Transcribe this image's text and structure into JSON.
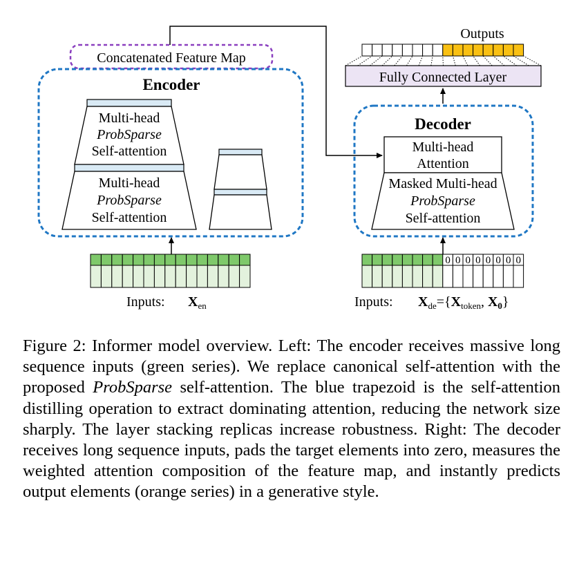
{
  "encoder": {
    "concat_label": "Concatenated Feature Map",
    "title": "Encoder",
    "attn_block_1": [
      "Multi-head",
      "ProbSparse",
      "Self-attention"
    ],
    "attn_block_2": [
      "Multi-head",
      "ProbSparse",
      "Self-attention"
    ],
    "inputs_label": "Inputs:",
    "inputs_symbol": "X",
    "inputs_subscript": "en"
  },
  "decoder": {
    "title": "Decoder",
    "cross_attn": [
      "Multi-head",
      "Attention"
    ],
    "masked_attn": [
      "Masked Multi-head",
      "ProbSparse",
      "Self-attention"
    ],
    "inputs_label": "Inputs:",
    "inputs_symbol_main": "X",
    "inputs_sub_de": "de",
    "inputs_eq": "={",
    "inputs_token": "X",
    "inputs_sub_token": "token",
    "inputs_comma": ", ",
    "inputs_zero": "X",
    "inputs_sub_zero": "0",
    "inputs_close": "}",
    "zero_cells": [
      "0",
      "0",
      "0",
      "0",
      "0",
      "0",
      "0",
      "0"
    ]
  },
  "output": {
    "fc_label": "Fully Connected Layer",
    "outputs_label": "Outputs"
  },
  "colors": {
    "encoder_border": "#1f77c4",
    "concat_border": "#8a3fbf",
    "input_green": "#7fc96b",
    "input_light": "#e3f2dd",
    "output_orange": "#f9c013",
    "fc_fill": "#ece4f4",
    "distill_fill": "#d9eaf5"
  },
  "caption": {
    "part1": "Figure 2: Informer model overview. Left: The encoder receives massive long sequence inputs (green series). We replace canonical self-attention with the proposed ",
    "italic": "ProbSparse",
    "part2": " self-attention. The blue trapezoid is the self-attention distilling operation to extract dominating attention, reducing the network size sharply. The layer stacking replicas increase robustness. Right: The decoder receives long sequence inputs, pads the target elements into zero, measures the weighted attention composition of the feature map, and instantly predicts output elements (orange series) in a generative style."
  }
}
